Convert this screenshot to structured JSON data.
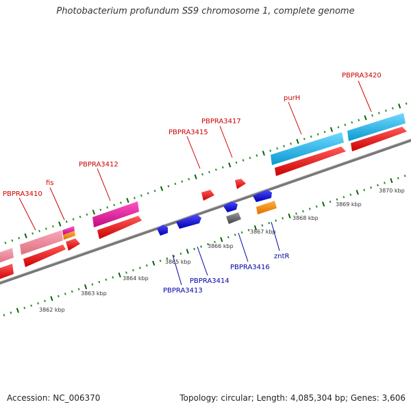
{
  "header": {
    "title": "Photobacterium profundum SS9 chromosome 1, complete genome"
  },
  "footer": {
    "accession": "Accession: NC_006370",
    "summary": "Topology: circular; Length: 4,085,304 bp; Genes: 3,606"
  },
  "scale": {
    "labels": [
      "3862 kbp",
      "3863 kbp",
      "3864 kbp",
      "3865 kbp",
      "3866 kbp",
      "3867 kbp",
      "3868 kbp",
      "3869 kbp",
      "3870 kbp"
    ]
  },
  "genes_top": [
    {
      "label": "PBPRA3410"
    },
    {
      "label": "fis"
    },
    {
      "label": "PBPRA3412"
    },
    {
      "label": "PBPRA3415"
    },
    {
      "label": "PBPRA3417"
    },
    {
      "label": "purH"
    },
    {
      "label": "PBPRA3420"
    }
  ],
  "genes_bottom": [
    {
      "label": "PBPRA3413"
    },
    {
      "label": "PBPRA3414"
    },
    {
      "label": "PBPRA3416"
    },
    {
      "label": "zntR"
    }
  ],
  "colors": {
    "backbone": "#888888",
    "tick_minor": "#2e8b2e",
    "tick_major": "#006400",
    "cds_forward": "#e60000",
    "cds_reverse": "#0000e0",
    "pink": "#f080a0",
    "magenta": "#e8129a",
    "cyan": "#1fb6ea",
    "orange": "#ff8c00",
    "gray": "#666666",
    "label_top": "#cc0000",
    "label_bottom": "#0000aa"
  }
}
